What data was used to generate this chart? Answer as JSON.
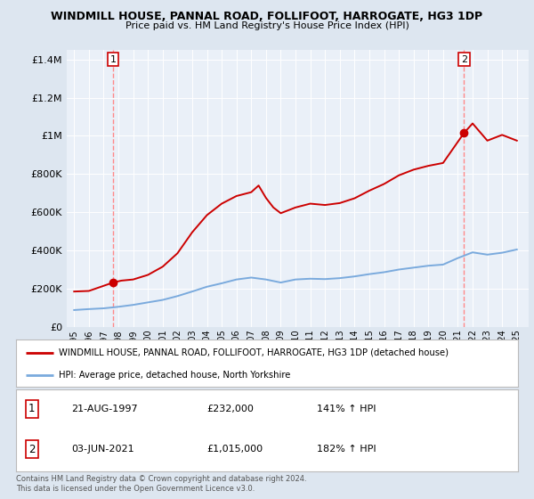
{
  "title": "WINDMILL HOUSE, PANNAL ROAD, FOLLIFOOT, HARROGATE, HG3 1DP",
  "subtitle": "Price paid vs. HM Land Registry's House Price Index (HPI)",
  "legend_label1": "WINDMILL HOUSE, PANNAL ROAD, FOLLIFOOT, HARROGATE, HG3 1DP (detached house)",
  "legend_label2": "HPI: Average price, detached house, North Yorkshire",
  "transaction1_label": "21-AUG-1997",
  "transaction1_price": "£232,000",
  "transaction1_hpi": "141% ↑ HPI",
  "transaction2_label": "03-JUN-2021",
  "transaction2_price": "£1,015,000",
  "transaction2_hpi": "182% ↑ HPI",
  "footnote": "Contains HM Land Registry data © Crown copyright and database right 2024.\nThis data is licensed under the Open Government Licence v3.0.",
  "hpi_color": "#7aaadd",
  "price_color": "#cc0000",
  "marker_color": "#cc0000",
  "dashed_color": "#ff8888",
  "background_color": "#dde6f0",
  "plot_bg_color": "#eaf0f8",
  "grid_color": "#ffffff",
  "ylim": [
    0,
    1450000
  ],
  "yticks": [
    0,
    200000,
    400000,
    600000,
    800000,
    1000000,
    1200000,
    1400000
  ],
  "hpi_years": [
    1995,
    1996,
    1997,
    1998,
    1999,
    2000,
    2001,
    2002,
    2003,
    2004,
    2005,
    2006,
    2007,
    2008,
    2009,
    2010,
    2011,
    2012,
    2013,
    2014,
    2015,
    2016,
    2017,
    2018,
    2019,
    2020,
    2021,
    2022,
    2023,
    2024,
    2025
  ],
  "hpi_values": [
    88000,
    93000,
    97000,
    105000,
    115000,
    128000,
    141000,
    161000,
    185000,
    210000,
    228000,
    248000,
    258000,
    248000,
    232000,
    248000,
    252000,
    250000,
    255000,
    264000,
    276000,
    286000,
    300000,
    310000,
    320000,
    326000,
    360000,
    390000,
    378000,
    388000,
    405000
  ],
  "price_years": [
    1995,
    1996,
    1997.64,
    1998.2,
    1999,
    2000,
    2001,
    2002,
    2003,
    2004,
    2005,
    2006,
    2007,
    2007.5,
    2008,
    2008.5,
    2009,
    2010,
    2011,
    2012,
    2013,
    2014,
    2015,
    2016,
    2017,
    2018,
    2019,
    2020,
    2021.42,
    2022,
    2023,
    2024,
    2025
  ],
  "price_values": [
    185000,
    188000,
    232000,
    242000,
    248000,
    272000,
    315000,
    385000,
    495000,
    585000,
    645000,
    685000,
    705000,
    740000,
    675000,
    625000,
    595000,
    625000,
    645000,
    638000,
    648000,
    673000,
    713000,
    748000,
    793000,
    823000,
    843000,
    858000,
    1015000,
    1065000,
    975000,
    1005000,
    975000
  ],
  "transaction1_x": 1997.64,
  "transaction1_y": 232000,
  "transaction2_x": 2021.42,
  "transaction2_y": 1015000,
  "xlim_left": 1994.5,
  "xlim_right": 2025.8
}
